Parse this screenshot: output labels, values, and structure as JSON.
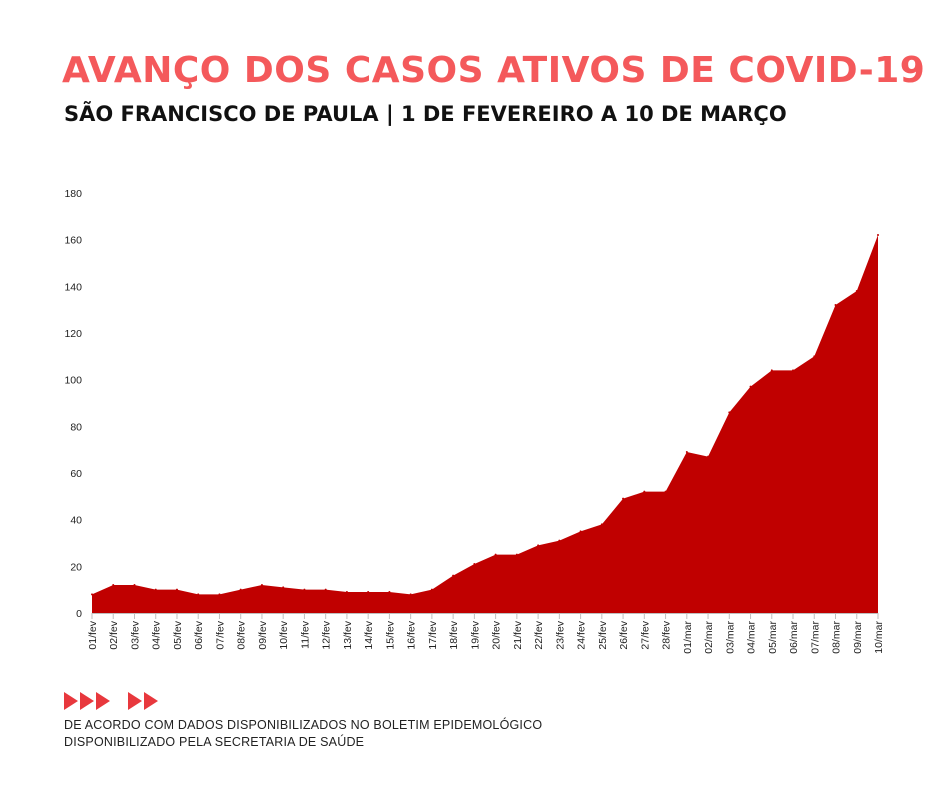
{
  "header": {
    "title": "AVANÇO DOS CASOS ATIVOS DE COVID-19",
    "subtitle": "SÃO FRANCISCO DE PAULA | 1 DE FEVEREIRO A 10 DE MARÇO"
  },
  "colors": {
    "title": "#f4595b",
    "area": "#c00000",
    "arrows": "#e8383d",
    "axis": "#bfbfbf"
  },
  "chart_data": {
    "type": "area",
    "title": "",
    "xlabel": "",
    "ylabel": "",
    "ylim": [
      0,
      180
    ],
    "yticks": [
      0,
      20,
      40,
      60,
      80,
      100,
      120,
      140,
      160,
      180
    ],
    "grid": false,
    "categories": [
      "01/fev",
      "02/fev",
      "03/fev",
      "04/fev",
      "05/fev",
      "06/fev",
      "07/fev",
      "08/fev",
      "09/fev",
      "10/fev",
      "11/fev",
      "12/fev",
      "13/fev",
      "14/fev",
      "15/fev",
      "16/fev",
      "17/fev",
      "18/fev",
      "19/fev",
      "20/fev",
      "21/fev",
      "22/fev",
      "23/fev",
      "24/fev",
      "25/fev",
      "26/fev",
      "27/fev",
      "28/fev",
      "01/mar",
      "02/mar",
      "03/mar",
      "04/mar",
      "05/mar",
      "06/mar",
      "07/mar",
      "08/mar",
      "09/mar",
      "10/mar"
    ],
    "values": [
      8,
      12,
      12,
      10,
      10,
      8,
      8,
      10,
      12,
      11,
      10,
      10,
      9,
      9,
      9,
      8,
      10,
      16,
      21,
      25,
      25,
      29,
      31,
      35,
      38,
      49,
      52,
      52,
      69,
      67,
      86,
      97,
      104,
      104,
      110,
      132,
      138,
      162
    ]
  },
  "footnote": {
    "line1": "DE ACORDO COM DADOS DISPONIBILIZADOS NO BOLETIM EPIDEMOLÓGICO",
    "line2": "DISPONIBILIZADO PELA SECRETARIA DE SAÚDE"
  }
}
